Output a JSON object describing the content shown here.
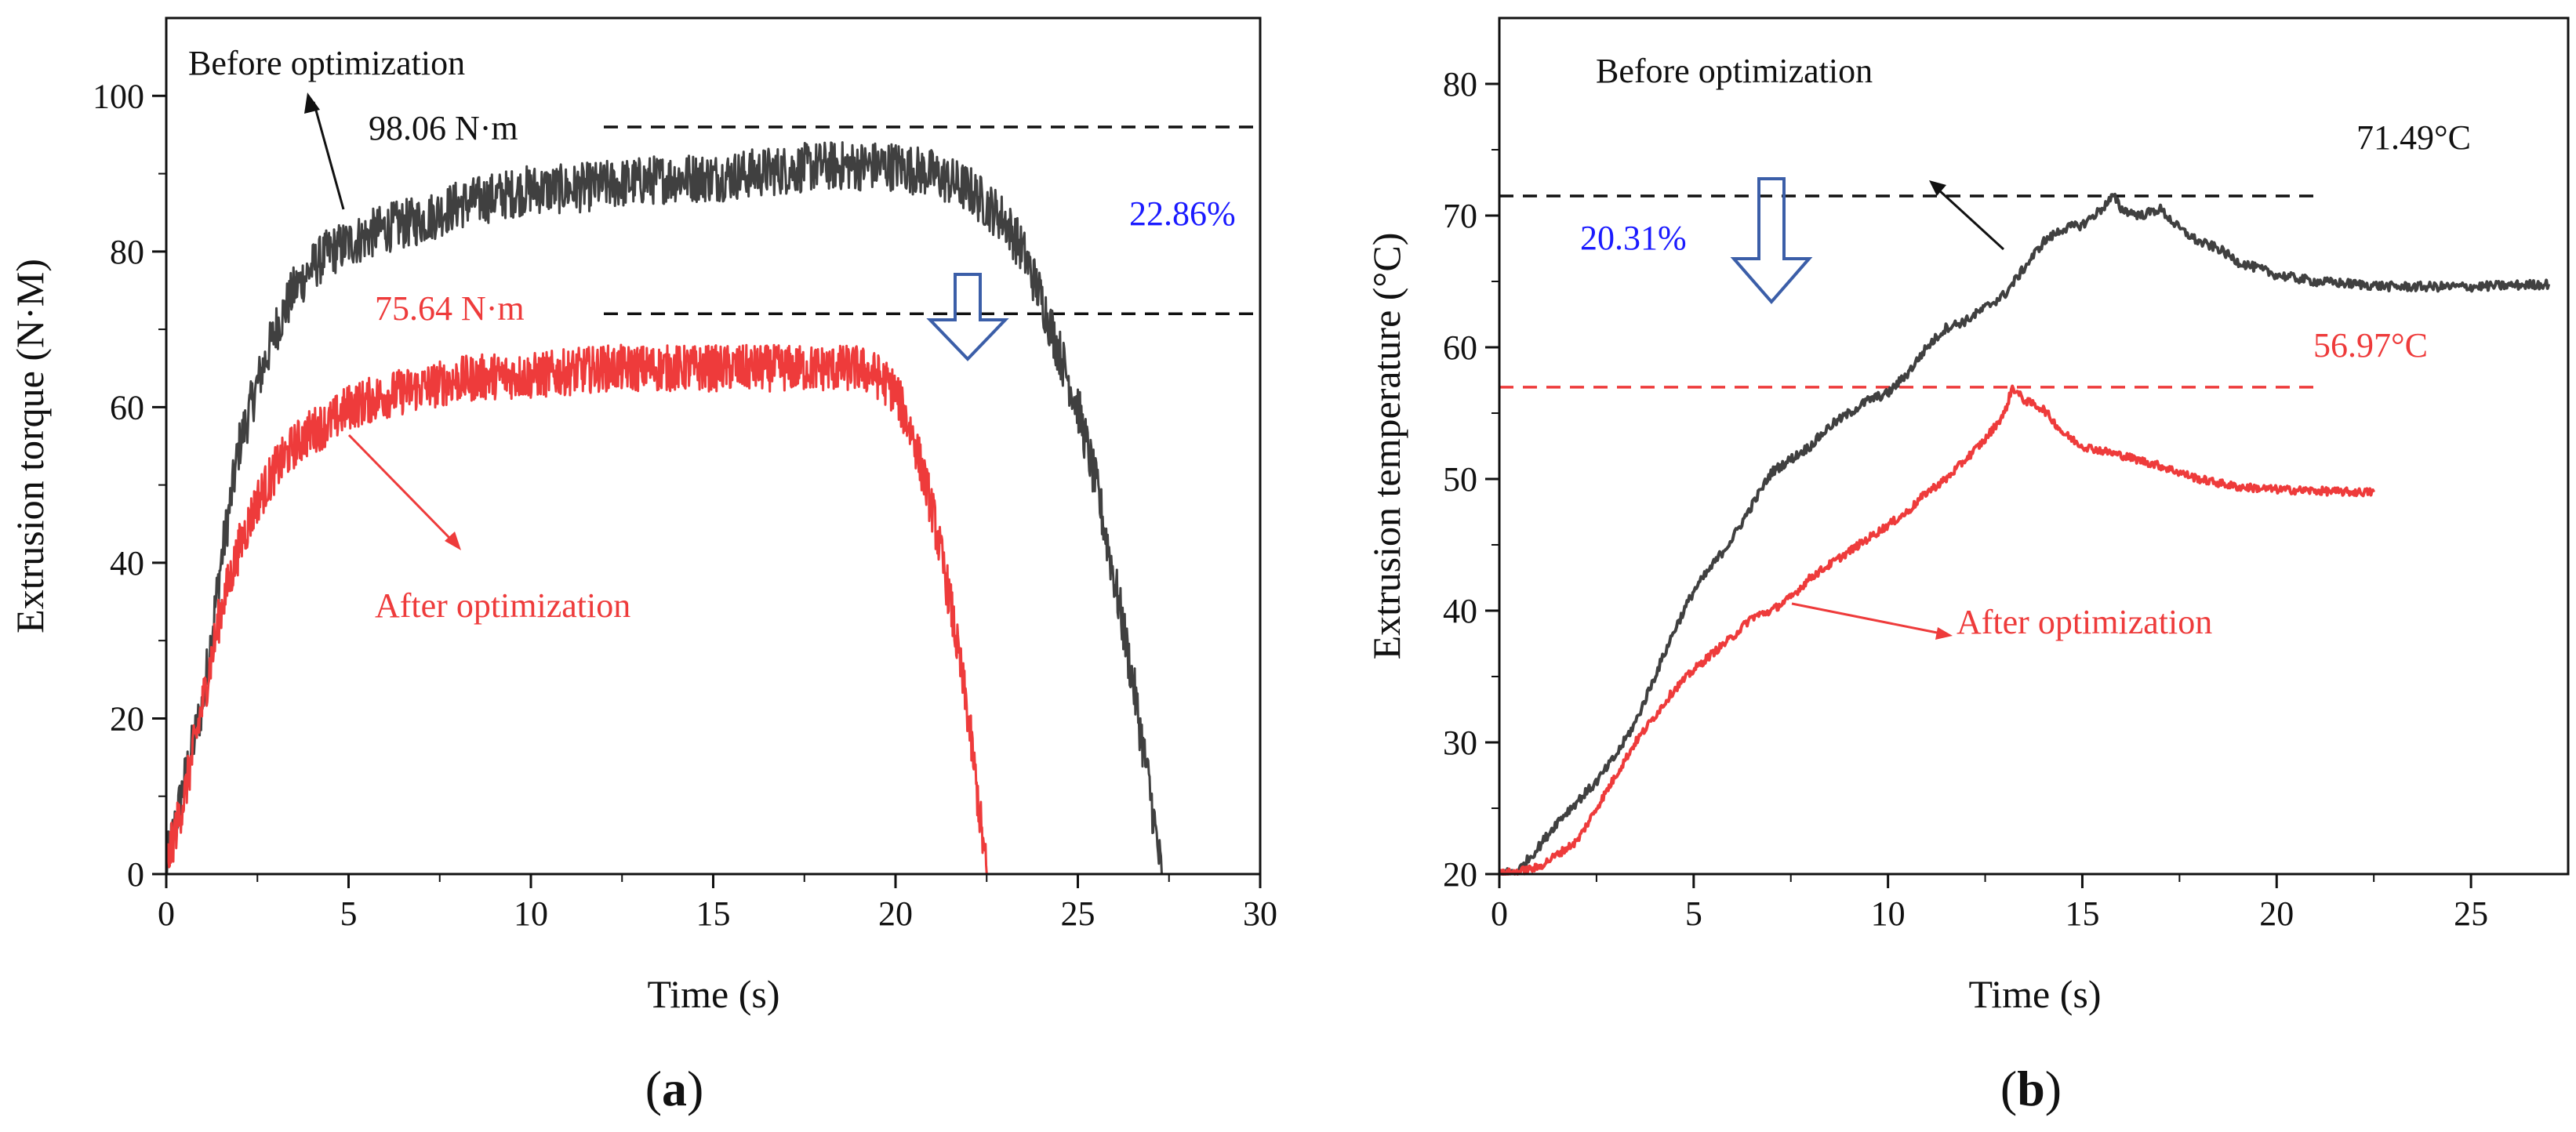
{
  "chart_data": [
    {
      "type": "line",
      "panel": "a",
      "xlabel": "Time (s)",
      "ylabel": "Extrusion torque (N·M)",
      "xlim": [
        0,
        30
      ],
      "ylim": [
        0,
        110
      ],
      "xticks": [
        0,
        5,
        10,
        15,
        20,
        25,
        30
      ],
      "yticks": [
        0,
        20,
        40,
        60,
        80,
        100
      ],
      "series": [
        {
          "name": "Before optimization",
          "color": "#404040",
          "noise": 3.2,
          "x": [
            0,
            0.5,
            1,
            1.5,
            2,
            2.5,
            3,
            3.5,
            4,
            4.5,
            5,
            6,
            7,
            8,
            9,
            10,
            11,
            12,
            13,
            14,
            15,
            16,
            17,
            18,
            19,
            20,
            21,
            22,
            23,
            23.5,
            24,
            24.5,
            25,
            25.5,
            26,
            26.5,
            27,
            27.2,
            27.3
          ],
          "values": [
            1,
            12,
            22,
            40,
            55,
            63,
            70,
            75,
            78,
            80,
            81,
            83,
            84,
            86,
            87,
            88,
            88,
            88.5,
            89,
            89.5,
            89.5,
            90,
            90.5,
            91,
            91,
            91,
            90,
            88,
            84,
            80,
            74,
            67,
            60,
            50,
            38,
            25,
            10,
            3,
            0
          ]
        },
        {
          "name": "After optimization",
          "color": "#ee3b3b",
          "noise": 3.0,
          "x": [
            0,
            0.5,
            1,
            1.5,
            2,
            2.5,
            3,
            3.5,
            4,
            4.5,
            5,
            6,
            7,
            8,
            9,
            10,
            11,
            12,
            13,
            14,
            15,
            16,
            17,
            18,
            19,
            19.5,
            20,
            20.5,
            21,
            21.5,
            22,
            22.3,
            22.5
          ],
          "values": [
            1,
            10,
            22,
            34,
            42,
            48,
            52,
            55,
            57,
            58,
            60,
            61.5,
            62.5,
            63.5,
            64,
            64,
            64.5,
            65,
            65,
            65,
            65,
            65,
            65,
            65,
            65,
            64,
            62,
            56,
            47,
            35,
            20,
            8,
            0
          ]
        }
      ],
      "reference_lines": [
        {
          "value": 96,
          "color": "#111111",
          "x_from": 12,
          "x_to": 30
        },
        {
          "value": 72,
          "color": "#111111",
          "x_from": 12,
          "x_to": 30
        }
      ],
      "annotations": {
        "legend_before": "Before optimization",
        "legend_after": "After optimization",
        "peak_before": "98.06 N·m",
        "peak_after": "75.64 N·m",
        "reduction": "22.86%"
      },
      "panel_label": "a"
    },
    {
      "type": "line",
      "panel": "b",
      "xlabel": "Time (s)",
      "ylabel": "Extrusion temperature (°C)",
      "xlim": [
        0,
        27.5
      ],
      "ylim": [
        20,
        85
      ],
      "xticks": [
        0,
        5,
        10,
        15,
        20,
        25
      ],
      "yticks": [
        20,
        30,
        40,
        50,
        60,
        70,
        80
      ],
      "series": [
        {
          "name": "Before optimization",
          "color": "#404040",
          "noise": 0.35,
          "x": [
            0,
            0.5,
            1,
            1.5,
            2,
            2.5,
            3,
            3.5,
            4,
            4.5,
            5,
            5.5,
            6,
            6.5,
            7,
            7.5,
            8,
            8.5,
            9,
            9.5,
            10,
            10.5,
            11,
            11.5,
            12,
            12.5,
            13,
            13.5,
            14,
            14.5,
            15,
            15.5,
            15.8,
            16,
            16.5,
            17,
            17.5,
            18,
            18.5,
            19,
            20,
            21,
            22,
            23,
            24,
            25,
            26,
            27
          ],
          "values": [
            20,
            20.3,
            22,
            24,
            25.5,
            27,
            29,
            31.5,
            35,
            38.5,
            41.5,
            43.5,
            45.5,
            48,
            50.5,
            51.5,
            52.5,
            54,
            55,
            56,
            56.5,
            58,
            60,
            61.5,
            62,
            63,
            64,
            66,
            68,
            69,
            69.3,
            70.5,
            71.49,
            70.5,
            70,
            70.5,
            69,
            68,
            67.5,
            66.5,
            65.5,
            65,
            64.8,
            64.6,
            64.6,
            64.6,
            64.7,
            64.8
          ]
        },
        {
          "name": "After optimization",
          "color": "#ee3b3b",
          "noise": 0.3,
          "x": [
            0,
            0.5,
            1,
            1.5,
            2,
            2.5,
            3,
            3.5,
            4,
            4.5,
            5,
            5.5,
            6,
            6.5,
            7,
            7.5,
            8,
            8.5,
            9,
            9.5,
            10,
            10.5,
            11,
            11.5,
            12,
            12.5,
            13,
            13.2,
            13.5,
            14,
            14.5,
            15,
            16,
            17,
            18,
            19,
            20,
            21,
            22,
            22.5
          ],
          "values": [
            20,
            20.2,
            20.5,
            21.5,
            22.5,
            25,
            27.5,
            30,
            32,
            34,
            35.5,
            36.8,
            38,
            39.5,
            40,
            41,
            42.5,
            43.5,
            44.5,
            45.5,
            46.5,
            47.5,
            49,
            50,
            51.5,
            53,
            55,
            56.97,
            56,
            55.3,
            53.5,
            52.5,
            51.8,
            51,
            50,
            49.4,
            49.2,
            49.1,
            49,
            49
          ]
        }
      ],
      "reference_lines": [
        {
          "value": 71.49,
          "color": "#111111",
          "x_from": 0,
          "x_to": 21
        },
        {
          "value": 56.97,
          "color": "#ee3b3b",
          "x_from": 0,
          "x_to": 21
        }
      ],
      "annotations": {
        "legend_before": "Before optimization",
        "legend_after": "After optimization",
        "peak_before": "71.49°C",
        "peak_after": "56.97°C",
        "reduction": "20.31%"
      },
      "panel_label": "b"
    }
  ]
}
